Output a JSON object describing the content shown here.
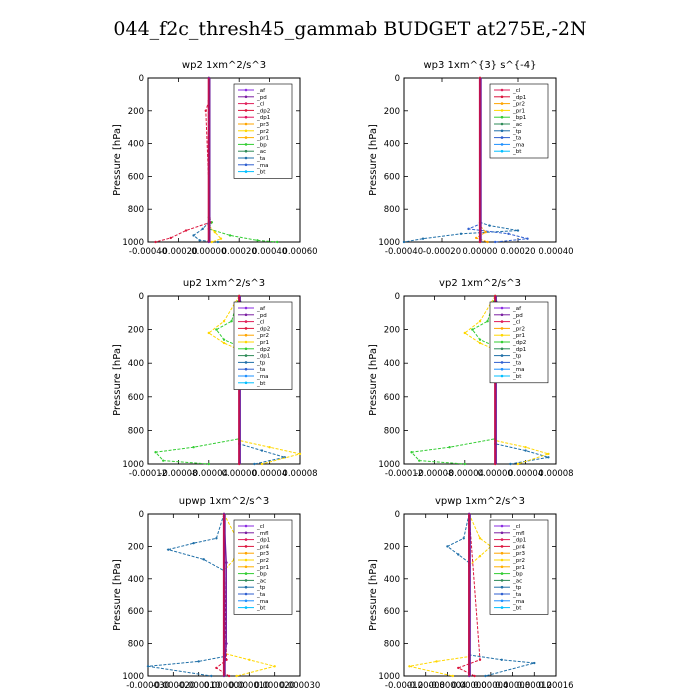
{
  "page": {
    "title": "044_f2c_thresh45_gammab  BUDGET at275E,-2N"
  },
  "chart_data": [
    {
      "type": "line",
      "title": "wp2   1xm^2/s^3",
      "ylabel": "Pressure [hPa]",
      "xlim": [
        -0.0004,
        0.0006
      ],
      "ylim": [
        1000,
        0
      ],
      "x_ticks": [
        "-0.00040",
        "-0.00020",
        "0.00000",
        "0.00020",
        "0.00040",
        "0.00060"
      ],
      "y_ticks": [
        "0",
        "200",
        "400",
        "600",
        "800",
        "1000"
      ],
      "legend_entries": [
        "_af",
        "_pd",
        "_cl",
        "_dp2",
        "_dp1",
        "_pr3",
        "_pr2",
        "_pr1",
        "_bp",
        "_ac",
        "_ta",
        "_ma",
        "_bt"
      ],
      "colors": [
        "#8a2be2",
        "#7b1fa2",
        "#e01e5a",
        "#dc143c",
        "#e0115f",
        "#ffa500",
        "#ffd700",
        "#ffb000",
        "#32cd32",
        "#2e8b57",
        "#1f6fa8",
        "#2f5fd0",
        "#00bfff"
      ],
      "series": [
        {
          "color": "#32cd32",
          "x": [
            0,
            0,
            2e-05,
            0.0,
            0.00014,
            0.00032,
            0.00045
          ],
          "y": [
            0,
            850,
            880,
            920,
            960,
            990,
            1000
          ]
        },
        {
          "color": "#dc143c",
          "x": [
            0,
            0,
            -2e-05,
            1e-05,
            -0.00015,
            -0.00025,
            -0.00035
          ],
          "y": [
            0,
            140,
            200,
            880,
            930,
            975,
            1000
          ]
        },
        {
          "color": "#1f6fa8",
          "x": [
            0,
            0,
            -4e-05,
            -0.0001,
            -6e-05,
            6e-05
          ],
          "y": [
            0,
            880,
            920,
            960,
            990,
            1000
          ]
        },
        {
          "color": "#ffd700",
          "x": [
            0,
            0,
            4e-05,
            8e-05,
            2e-05
          ],
          "y": [
            0,
            900,
            940,
            980,
            1000
          ]
        },
        {
          "color": "#7b1fa2",
          "x": [
            0,
            0
          ],
          "y": [
            0,
            1000
          ]
        }
      ]
    },
    {
      "type": "line",
      "title": "wp3   1xm^{3} s^{-4}",
      "ylabel": "Pressure [hPa]",
      "xlim": [
        -0.0004,
        0.0004
      ],
      "ylim": [
        1000,
        0
      ],
      "x_ticks": [
        "-0.00040",
        "-0.00020",
        "0.00000",
        "0.00020",
        "0.00040"
      ],
      "y_ticks": [
        "0",
        "200",
        "400",
        "600",
        "800",
        "1000"
      ],
      "legend_entries": [
        "_cl",
        "_dp1",
        "_pr2",
        "_pr1",
        "_bp1",
        "_ac",
        "_tp",
        "_ta",
        "_ma",
        "_bt"
      ],
      "colors": [
        "#e01e5a",
        "#dc143c",
        "#ffa500",
        "#ffd700",
        "#32cd32",
        "#2e8b57",
        "#1f6fa8",
        "#2f5fd0",
        "#1e90ff",
        "#00bfff"
      ],
      "series": [
        {
          "color": "#1f6fa8",
          "x": [
            0,
            0,
            5e-05,
            0.0002,
            -0.0001,
            -0.0003,
            -0.0004
          ],
          "y": [
            0,
            880,
            900,
            930,
            950,
            980,
            1000
          ]
        },
        {
          "color": "#2f5fd0",
          "x": [
            0,
            0,
            -6e-05,
            0.00015,
            0.00025,
            8e-05
          ],
          "y": [
            0,
            890,
            920,
            950,
            980,
            1000
          ]
        },
        {
          "color": "#ffa500",
          "x": [
            0,
            0,
            3e-05,
            -2e-05,
            4e-05
          ],
          "y": [
            0,
            900,
            940,
            975,
            1000
          ]
        },
        {
          "color": "#dc143c",
          "x": [
            0,
            0
          ],
          "y": [
            0,
            1000
          ]
        }
      ]
    },
    {
      "type": "line",
      "title": "up2   1xm^2/s^3",
      "ylabel": "Pressure [hPa]",
      "xlim": [
        -0.00012,
        8e-05
      ],
      "ylim": [
        1000,
        0
      ],
      "x_ticks": [
        "-0.00012",
        "-0.00008",
        "-0.00004",
        "0.00000",
        "0.00004",
        "0.00008"
      ],
      "y_ticks": [
        "0",
        "200",
        "400",
        "600",
        "800",
        "1000"
      ],
      "legend_entries": [
        "_af",
        "_pd",
        "_cl",
        "_dp2",
        "_pr2",
        "_pr1",
        "_dp2",
        "_dp1",
        "_tp",
        "_ta",
        "_ma",
        "_bt"
      ],
      "colors": [
        "#8a2be2",
        "#7b1fa2",
        "#e01e5a",
        "#dc143c",
        "#ffa500",
        "#ffd700",
        "#32cd32",
        "#2e8b57",
        "#1f6fa8",
        "#2f5fd0",
        "#1e90ff",
        "#00bfff"
      ],
      "series": [
        {
          "color": "#32cd32",
          "x": [
            0,
            -1e-05,
            -3e-05,
            -2e-05,
            0,
            0,
            -6e-05,
            -0.00011,
            -0.0001,
            -4e-05
          ],
          "y": [
            0,
            150,
            200,
            260,
            300,
            850,
            900,
            930,
            980,
            1000
          ]
        },
        {
          "color": "#1f6fa8",
          "x": [
            0,
            1e-05,
            3e-05,
            4e-05,
            1e-05,
            0,
            0,
            3e-05,
            6e-05,
            2e-05
          ],
          "y": [
            0,
            150,
            200,
            260,
            330,
            400,
            880,
            920,
            960,
            1000
          ]
        },
        {
          "color": "#ffd700",
          "x": [
            0,
            -2e-05,
            -4e-05,
            -2e-05,
            0,
            0,
            4e-05,
            8e-05,
            3e-05
          ],
          "y": [
            0,
            150,
            220,
            280,
            320,
            860,
            900,
            940,
            1000
          ]
        },
        {
          "color": "#dc143c",
          "x": [
            0,
            0
          ],
          "y": [
            0,
            1000
          ]
        }
      ]
    },
    {
      "type": "line",
      "title": "vp2   1xm^2/s^3",
      "ylabel": "Pressure [hPa]",
      "xlim": [
        -0.00012,
        8e-05
      ],
      "ylim": [
        1000,
        0
      ],
      "x_ticks": [
        "-0.00012",
        "-0.00008",
        "-0.00004",
        "0.00000",
        "0.00004",
        "0.00008"
      ],
      "y_ticks": [
        "0",
        "200",
        "400",
        "600",
        "800",
        "1000"
      ],
      "legend_entries": [
        "_af",
        "_pd",
        "_cl",
        "_pr2",
        "_pr1",
        "_dp2",
        "_dp1",
        "_tp",
        "_ta",
        "_ma",
        "_bt"
      ],
      "colors": [
        "#8a2be2",
        "#7b1fa2",
        "#e01e5a",
        "#ffa500",
        "#ffd700",
        "#32cd32",
        "#2e8b57",
        "#1f6fa8",
        "#2f5fd0",
        "#1e90ff",
        "#00bfff"
      ],
      "series": [
        {
          "color": "#32cd32",
          "x": [
            0,
            -1e-05,
            -3e-05,
            -2e-05,
            0,
            0,
            -6e-05,
            -0.00011,
            -0.0001,
            -4e-05
          ],
          "y": [
            0,
            150,
            200,
            260,
            300,
            850,
            900,
            930,
            980,
            1000
          ]
        },
        {
          "color": "#1f6fa8",
          "x": [
            0,
            1e-05,
            3e-05,
            1e-05,
            0,
            0,
            4e-05,
            7e-05,
            2e-05
          ],
          "y": [
            0,
            150,
            200,
            300,
            400,
            880,
            920,
            960,
            1000
          ]
        },
        {
          "color": "#ffd700",
          "x": [
            0,
            -2e-05,
            -4e-05,
            -2e-05,
            0,
            0,
            4e-05,
            7e-05,
            3e-05
          ],
          "y": [
            0,
            150,
            220,
            280,
            320,
            860,
            900,
            940,
            1000
          ]
        },
        {
          "color": "#dc143c",
          "x": [
            0,
            0
          ],
          "y": [
            0,
            1000
          ]
        }
      ]
    },
    {
      "type": "line",
      "title": "upwp   1xm^2/s^3",
      "ylabel": "Pressure [hPa]",
      "xlim": [
        -0.0003,
        0.0003
      ],
      "ylim": [
        1000,
        0
      ],
      "x_ticks": [
        "-0.000030",
        "-0.000020",
        "-0.000010",
        "0.000000",
        "0.000010",
        "0.000020",
        "0.000030"
      ],
      "y_ticks": [
        "0",
        "200",
        "400",
        "600",
        "800",
        "1000"
      ],
      "legend_entries": [
        "_cl",
        "_mfl",
        "_dp1",
        "_pr4",
        "_pr3",
        "_pr2",
        "_pr1",
        "_bp",
        "_ac",
        "_tp",
        "_ta",
        "_ma",
        "_bt"
      ],
      "colors": [
        "#8a2be2",
        "#7b1fa2",
        "#e01e5a",
        "#dc143c",
        "#ffa500",
        "#ffd700",
        "#ffb000",
        "#32cd32",
        "#2e8b57",
        "#1f6fa8",
        "#2f5fd0",
        "#1e90ff",
        "#00bfff"
      ],
      "series": [
        {
          "color": "#1f6fa8",
          "x": [
            0,
            -3e-05,
            -0.00012,
            -0.00022,
            -8e-05,
            0,
            0,
            -0.0001,
            -0.0003,
            -5e-05
          ],
          "y": [
            0,
            150,
            180,
            220,
            280,
            350,
            880,
            910,
            940,
            1000
          ]
        },
        {
          "color": "#ffd700",
          "x": [
            0,
            5e-05,
            0.0001,
            4e-05,
            0,
            0,
            0.0001,
            0.0002,
            5e-05
          ],
          "y": [
            0,
            150,
            220,
            280,
            350,
            860,
            900,
            940,
            1000
          ]
        },
        {
          "color": "#dc143c",
          "x": [
            0,
            1e-05,
            -3e-05,
            2e-05
          ],
          "y": [
            0,
            900,
            950,
            1000
          ]
        },
        {
          "color": "#7b1fa2",
          "x": [
            0,
            1e-05,
            1e-05,
            0
          ],
          "y": [
            0,
            300,
            800,
            1000
          ]
        }
      ]
    },
    {
      "type": "line",
      "title": "vpwp   1xm^2/s^3",
      "ylabel": "Pressure [hPa]",
      "xlim": [
        -0.00012,
        0.00016
      ],
      "ylim": [
        1000,
        0
      ],
      "x_ticks": [
        "-0.00012",
        "-0.00008",
        "-0.00004",
        "0.00000",
        "0.00004",
        "0.00008",
        "0.00012",
        "0.00016"
      ],
      "y_ticks": [
        "0",
        "200",
        "400",
        "600",
        "800",
        "1000"
      ],
      "legend_entries": [
        "_cl",
        "_mfl",
        "_dp1",
        "_pr4",
        "_pr3",
        "_pr2",
        "_pr1",
        "_bp",
        "_ac",
        "_tp",
        "_ta",
        "_ma",
        "_bt"
      ],
      "colors": [
        "#8a2be2",
        "#7b1fa2",
        "#e01e5a",
        "#dc143c",
        "#ffa500",
        "#ffd700",
        "#ffb000",
        "#32cd32",
        "#2e8b57",
        "#1f6fa8",
        "#2f5fd0",
        "#1e90ff",
        "#00bfff"
      ],
      "series": [
        {
          "color": "#1f6fa8",
          "x": [
            0,
            -1e-05,
            -4e-05,
            -2e-05,
            0,
            0,
            6e-05,
            0.00012,
            3e-05
          ],
          "y": [
            0,
            150,
            200,
            250,
            300,
            870,
            900,
            920,
            1000
          ]
        },
        {
          "color": "#ffd700",
          "x": [
            0,
            2e-05,
            4e-05,
            2e-05,
            0,
            0,
            -6e-05,
            -0.00011,
            -3e-05
          ],
          "y": [
            0,
            150,
            200,
            260,
            320,
            880,
            910,
            940,
            1000
          ]
        },
        {
          "color": "#dc143c",
          "x": [
            0,
            2e-05,
            -2e-05,
            1e-05
          ],
          "y": [
            0,
            900,
            950,
            1000
          ]
        },
        {
          "color": "#7b1fa2",
          "x": [
            0,
            0
          ],
          "y": [
            0,
            1000
          ]
        }
      ]
    }
  ]
}
